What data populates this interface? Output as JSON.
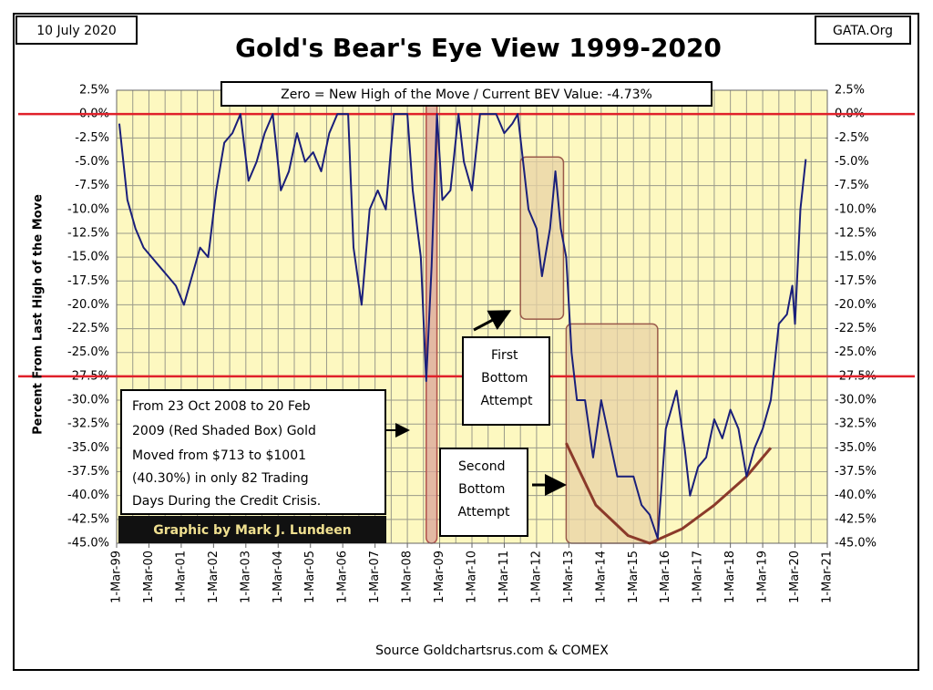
{
  "chart_data": {
    "type": "line",
    "title": "Gold's Bear's Eye View 1999-2020",
    "date_label": "10 July 2020",
    "corner_label": "GATA.Org",
    "header_note": "Zero = New High of the Move / Current BEV Value:  -4.73%",
    "ylabel": "Percent  From Last High of the Move",
    "source": "Source Goldchartsrus.com & COMEX",
    "credit": "Graphic by Mark J. Lundeen",
    "annotations": {
      "crisis": [
        "From  23 Oct 2008 to 20 Feb",
        "2009 (Red Shaded Box)  Gold",
        "Moved from $713 to $1001",
        "(40.30%) in only 82 Trading",
        "Days During the Credit Crisis."
      ],
      "first": [
        "First",
        "Bottom",
        "Attempt"
      ],
      "second": [
        "Second",
        "Bottom",
        "Attempt"
      ]
    },
    "plot_background": "#fdf8c0",
    "grid": true,
    "xlim": [
      "1999-03",
      "2021-03"
    ],
    "xticks": [
      {
        "value": "1999-03",
        "label": "1-Mar-99"
      },
      {
        "value": "2000-03",
        "label": "1-Mar-00"
      },
      {
        "value": "2001-03",
        "label": "1-Mar-01"
      },
      {
        "value": "2002-03",
        "label": "1-Mar-02"
      },
      {
        "value": "2003-03",
        "label": "1-Mar-03"
      },
      {
        "value": "2004-03",
        "label": "1-Mar-04"
      },
      {
        "value": "2005-03",
        "label": "1-Mar-05"
      },
      {
        "value": "2006-03",
        "label": "1-Mar-06"
      },
      {
        "value": "2007-03",
        "label": "1-Mar-07"
      },
      {
        "value": "2008-03",
        "label": "1-Mar-08"
      },
      {
        "value": "2009-03",
        "label": "1-Mar-09"
      },
      {
        "value": "2010-03",
        "label": "1-Mar-10"
      },
      {
        "value": "2011-03",
        "label": "1-Mar-11"
      },
      {
        "value": "2012-03",
        "label": "1-Mar-12"
      },
      {
        "value": "2013-03",
        "label": "1-Mar-13"
      },
      {
        "value": "2014-03",
        "label": "1-Mar-14"
      },
      {
        "value": "2015-03",
        "label": "1-Mar-15"
      },
      {
        "value": "2016-03",
        "label": "1-Mar-16"
      },
      {
        "value": "2017-03",
        "label": "1-Mar-17"
      },
      {
        "value": "2018-03",
        "label": "1-Mar-18"
      },
      {
        "value": "2019-03",
        "label": "1-Mar-19"
      },
      {
        "value": "2020-03",
        "label": "1-Mar-20"
      },
      {
        "value": "2021-03",
        "label": "1-Mar-21"
      }
    ],
    "ylim": [
      -45,
      2.5
    ],
    "yticks": [
      {
        "value": 2.5,
        "label": "2.5%"
      },
      {
        "value": 0,
        "label": "0.0%"
      },
      {
        "value": -2.5,
        "label": "-2.5%"
      },
      {
        "value": -5,
        "label": "-5.0%"
      },
      {
        "value": -7.5,
        "label": "-7.5%"
      },
      {
        "value": -10,
        "label": "-10.0%"
      },
      {
        "value": -12.5,
        "label": "-12.5%"
      },
      {
        "value": -15,
        "label": "-15.0%"
      },
      {
        "value": -17.5,
        "label": "-17.5%"
      },
      {
        "value": -20,
        "label": "-20.0%"
      },
      {
        "value": -22.5,
        "label": "-22.5%"
      },
      {
        "value": -25,
        "label": "-25.0%"
      },
      {
        "value": -27.5,
        "label": "-27.5%"
      },
      {
        "value": -30,
        "label": "-30.0%"
      },
      {
        "value": -32.5,
        "label": "-32.5%"
      },
      {
        "value": -35,
        "label": "-35.0%"
      },
      {
        "value": -37.5,
        "label": "-37.5%"
      },
      {
        "value": -40,
        "label": "-40.0%"
      },
      {
        "value": -42.5,
        "label": "-42.5%"
      },
      {
        "value": -45,
        "label": "-45.0%"
      }
    ],
    "y2lim": [
      -45,
      2.5
    ],
    "y2ticks": [
      {
        "value": 2.5,
        "label": "2.5%"
      },
      {
        "value": 0,
        "label": "0.0%"
      },
      {
        "value": -2.5,
        "label": "-2.5%"
      },
      {
        "value": -5,
        "label": "-5.0%"
      },
      {
        "value": -7.5,
        "label": "-7.5%"
      },
      {
        "value": -10,
        "label": "-10.0%"
      },
      {
        "value": -12.5,
        "label": "-12.5%"
      },
      {
        "value": -15,
        "label": "-15.0%"
      },
      {
        "value": -17.5,
        "label": "-17.5%"
      },
      {
        "value": -20,
        "label": "-20.0%"
      },
      {
        "value": -22.5,
        "label": "-22.5%"
      },
      {
        "value": -25,
        "label": "-25.0%"
      },
      {
        "value": -27.5,
        "label": "-27.5%"
      },
      {
        "value": -30,
        "label": "-30.0%"
      },
      {
        "value": -32.5,
        "label": "-32.5%"
      },
      {
        "value": -35,
        "label": "-35.0%"
      },
      {
        "value": -37.5,
        "label": "-37.5%"
      },
      {
        "value": -40,
        "label": "-40.0%"
      },
      {
        "value": -42.5,
        "label": "-42.5%"
      },
      {
        "value": -45,
        "label": "-45.0%"
      }
    ],
    "hlines": {
      "color": "#e0202a",
      "values": [
        0,
        -27.5
      ]
    },
    "shaded_regions": [
      {
        "x0": "2008-10",
        "x1": "2009-02",
        "y0": 2.5,
        "y1": -45,
        "color": "#d9a49a",
        "stroke": "#b0504a"
      },
      {
        "x0": "2011-09",
        "x1": "2013-01",
        "y0": -4.5,
        "y1": -21.5,
        "color": "#e8d3a6",
        "stroke": "#9a5a4a"
      },
      {
        "x0": "2013-02",
        "x1": "2015-12",
        "y0": -22,
        "y1": -45,
        "color": "#e8d3a6",
        "stroke": "#9a5a4a"
      }
    ],
    "trend_curve": {
      "color": "#8b3a2a",
      "x": [
        "2013-02",
        "2014-01",
        "2015-01",
        "2015-09",
        "2016-09",
        "2017-09",
        "2018-09",
        "2019-06"
      ],
      "y": [
        -34.5,
        -41,
        -44.2,
        -45,
        -43.5,
        -41,
        -38,
        -35
      ]
    },
    "series": [
      {
        "color": "#1a1f7a",
        "x": [
          "1999-04",
          "1999-07",
          "1999-10",
          "2000-01",
          "2000-04",
          "2000-07",
          "2000-10",
          "2001-01",
          "2001-04",
          "2001-07",
          "2001-10",
          "2002-01",
          "2002-04",
          "2002-07",
          "2002-10",
          "2003-01",
          "2003-04",
          "2003-07",
          "2003-10",
          "2004-01",
          "2004-04",
          "2004-07",
          "2004-10",
          "2005-01",
          "2005-04",
          "2005-07",
          "2005-10",
          "2006-01",
          "2006-05",
          "2006-07",
          "2006-10",
          "2007-01",
          "2007-04",
          "2007-07",
          "2007-10",
          "2008-01",
          "2008-03",
          "2008-05",
          "2008-08",
          "2008-10",
          "2008-12",
          "2009-02",
          "2009-04",
          "2009-07",
          "2009-10",
          "2009-12",
          "2010-03",
          "2010-06",
          "2010-09",
          "2010-12",
          "2011-03",
          "2011-06",
          "2011-08",
          "2011-10",
          "2011-12",
          "2012-03",
          "2012-05",
          "2012-08",
          "2012-10",
          "2012-12",
          "2013-02",
          "2013-04",
          "2013-06",
          "2013-09",
          "2013-12",
          "2014-03",
          "2014-06",
          "2014-09",
          "2014-12",
          "2015-03",
          "2015-06",
          "2015-09",
          "2015-12",
          "2016-03",
          "2016-07",
          "2016-10",
          "2016-12",
          "2017-03",
          "2017-06",
          "2017-09",
          "2017-12",
          "2018-03",
          "2018-06",
          "2018-09",
          "2018-12",
          "2019-03",
          "2019-06",
          "2019-09",
          "2019-12",
          "2020-02",
          "2020-03",
          "2020-05",
          "2020-07"
        ],
        "values": [
          -1,
          -9,
          -12,
          -14,
          -15,
          -16,
          -17,
          -18,
          -20,
          -17,
          -14,
          -15,
          -8,
          -3,
          -2,
          0,
          -7,
          -5,
          -2,
          0,
          -8,
          -6,
          -2,
          -5,
          -4,
          -6,
          -2,
          0,
          0,
          -14,
          -20,
          -10,
          -8,
          -10,
          0,
          0,
          0,
          -8,
          -15,
          -28,
          -16,
          0,
          -9,
          -8,
          0,
          -5,
          -8,
          0,
          0,
          0,
          -2,
          -1,
          0,
          -5,
          -10,
          -12,
          -17,
          -12,
          -6,
          -12,
          -15,
          -25,
          -30,
          -30,
          -36,
          -30,
          -34,
          -38,
          -38,
          -38,
          -41,
          -42,
          -44.5,
          -33,
          -29,
          -35,
          -40,
          -37,
          -36,
          -32,
          -34,
          -31,
          -33,
          -38,
          -35,
          -33,
          -30,
          -22,
          -21,
          -18,
          -22,
          -10,
          -4.73
        ]
      }
    ]
  }
}
